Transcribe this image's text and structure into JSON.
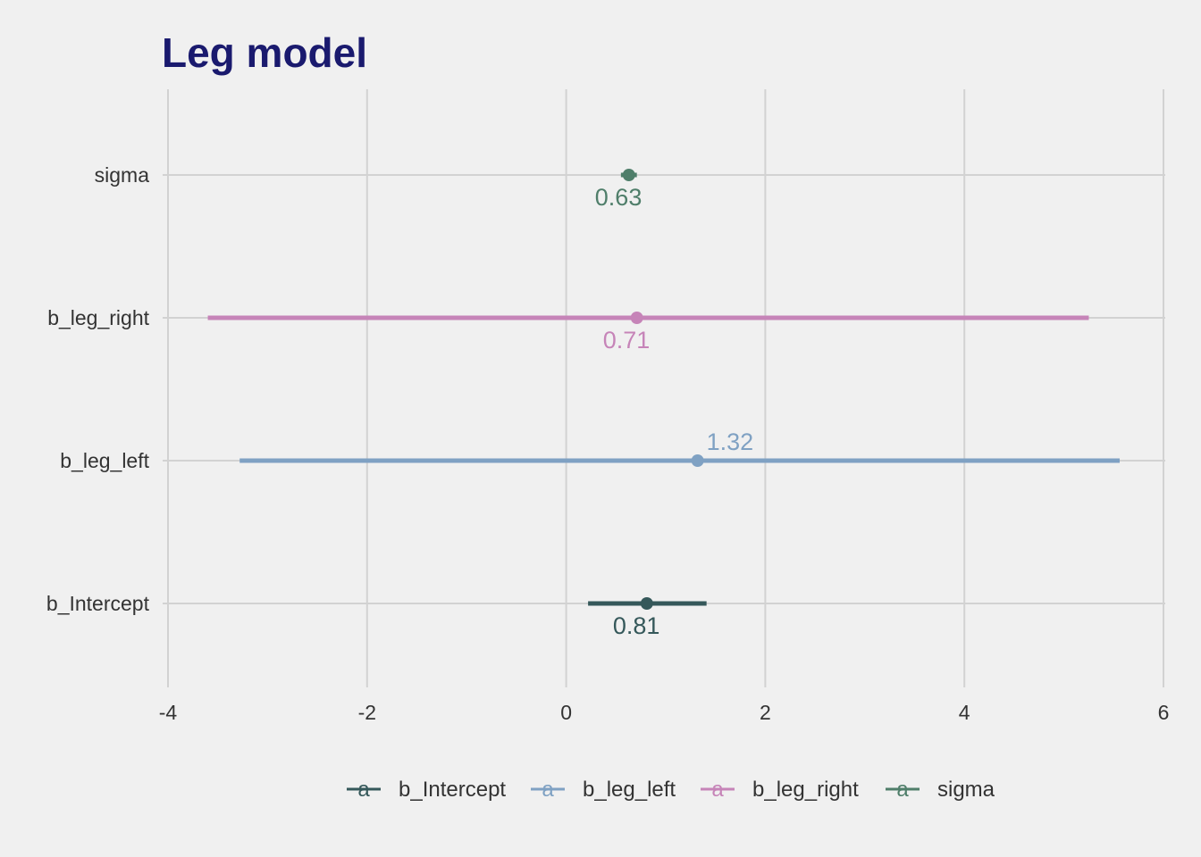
{
  "chart_data": {
    "type": "forest",
    "title": "Leg model",
    "xlabel": "",
    "ylabel": "",
    "xlim": [
      -4,
      6
    ],
    "x_ticks": [
      -4,
      -2,
      0,
      2,
      4,
      6
    ],
    "x_tick_labels": [
      "-4",
      "-2",
      "0",
      "2",
      "4",
      "6"
    ],
    "grid": true,
    "legend_position": "bottom",
    "categories": [
      "b_Intercept",
      "b_leg_left",
      "b_leg_right",
      "sigma"
    ],
    "series": [
      {
        "name": "b_Intercept",
        "estimate": 0.81,
        "low": 0.22,
        "high": 1.41,
        "label": "0.81",
        "label_side": "below",
        "color": "#35585a"
      },
      {
        "name": "b_leg_left",
        "estimate": 1.32,
        "low": -3.28,
        "high": 5.56,
        "label": "1.32",
        "label_side": "above",
        "color": "#7fa1c3"
      },
      {
        "name": "b_leg_right",
        "estimate": 0.71,
        "low": -3.6,
        "high": 5.25,
        "label": "0.71",
        "label_side": "below",
        "color": "#c684b8"
      },
      {
        "name": "sigma",
        "estimate": 0.63,
        "low": 0.55,
        "high": 0.71,
        "label": "0.63",
        "label_side": "below",
        "color": "#4f7e6a"
      }
    ],
    "legend_key_glyph": "a",
    "colors": {
      "background": "#f0f0f0",
      "grid": "#d2d2d2",
      "title": "#1a1a6e",
      "axis_text": "#333333"
    }
  }
}
